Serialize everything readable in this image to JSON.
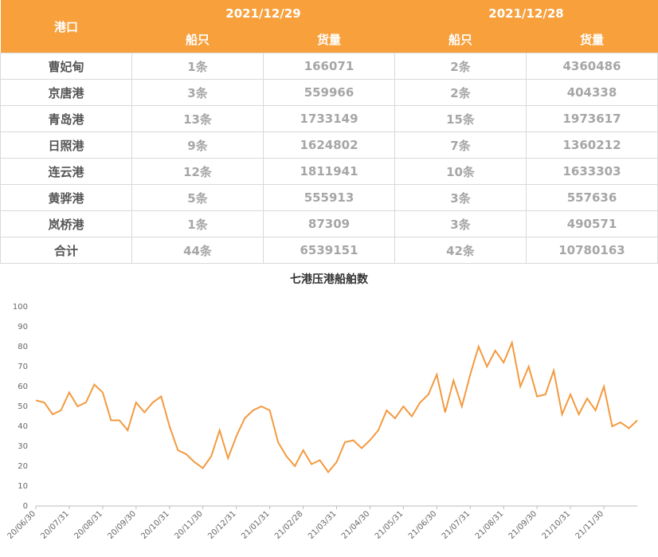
{
  "table": {
    "port_header": "港口",
    "dates": [
      "2021/12/29",
      "2021/12/28"
    ],
    "subheaders": [
      "船只",
      "货量",
      "船只",
      "货量"
    ],
    "rows": [
      [
        "曹妃甸",
        "1条",
        166071,
        "2条",
        4360486
      ],
      [
        "京唐港",
        "3条",
        559966,
        "2条",
        404338
      ],
      [
        "青岛港",
        "13条",
        1733149,
        "15条",
        1973617
      ],
      [
        "日照港",
        "9条",
        1624802,
        "7条",
        1360212
      ],
      [
        "连云港",
        "12条",
        1811941,
        "10条",
        1633303
      ],
      [
        "黄骅港",
        "5条",
        555913,
        "3条",
        557636
      ],
      [
        "岚桥港",
        "1条",
        87309,
        "3条",
        490571
      ],
      [
        "合计",
        "44条",
        6539151,
        "42条",
        10780163
      ]
    ]
  },
  "chart_data": {
    "type": "line",
    "title": "七港压港船舶数",
    "categories": [
      "20/06/30",
      null,
      null,
      null,
      "20/07/31",
      null,
      null,
      null,
      "20/08/31",
      null,
      null,
      null,
      "20/09/30",
      null,
      null,
      null,
      "20/10/31",
      null,
      null,
      null,
      "20/11/30",
      null,
      null,
      null,
      "20/12/31",
      null,
      null,
      null,
      "21/01/31",
      null,
      null,
      null,
      "21/02/28",
      null,
      null,
      null,
      "21/03/31",
      null,
      null,
      null,
      "21/04/30",
      null,
      null,
      null,
      "21/05/31",
      null,
      null,
      null,
      "21/06/30",
      null,
      null,
      null,
      "21/07/31",
      null,
      null,
      null,
      "21/08/31",
      null,
      null,
      null,
      "21/09/30",
      null,
      null,
      null,
      "21/10/31",
      null,
      null,
      null,
      "21/11/30",
      null,
      null,
      null,
      null
    ],
    "values": [
      53,
      52,
      46,
      48,
      57,
      50,
      52,
      61,
      57,
      43,
      43,
      38,
      52,
      47,
      52,
      55,
      40,
      28,
      26,
      22,
      19,
      25,
      38,
      24,
      35,
      44,
      48,
      50,
      48,
      32,
      25,
      20,
      28,
      21,
      23,
      17,
      22,
      32,
      33,
      29,
      33,
      38,
      48,
      44,
      50,
      45,
      52,
      56,
      66,
      47,
      63,
      50,
      66,
      80,
      70,
      78,
      72,
      82,
      60,
      70,
      55,
      56,
      68,
      46,
      56,
      46,
      54,
      48,
      60,
      40,
      42,
      39,
      43
    ],
    "color": "#f39a3f",
    "ylim": [
      0,
      100
    ],
    "yticks": [
      0,
      10,
      20,
      30,
      40,
      50,
      60,
      70,
      80,
      90,
      100
    ],
    "grid": false
  }
}
